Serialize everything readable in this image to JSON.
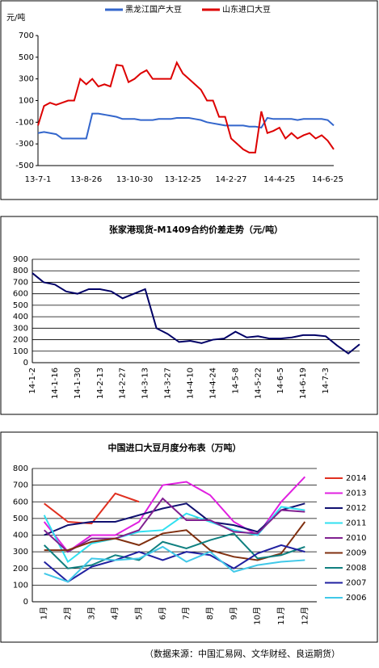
{
  "charts": [
    {
      "type": "line",
      "y_label": "元/吨",
      "legend": "top",
      "categories": [
        "13-7-1",
        null,
        null,
        null,
        null,
        null,
        null,
        null,
        "13-8-26",
        null,
        null,
        null,
        null,
        null,
        null,
        null,
        "13-10-30",
        null,
        null,
        null,
        null,
        null,
        null,
        null,
        "13-12-25",
        null,
        null,
        null,
        null,
        null,
        null,
        null,
        "14-2-27",
        null,
        null,
        null,
        null,
        null,
        null,
        null,
        "14-4-25",
        null,
        null,
        null,
        null,
        null,
        null,
        null,
        "14-6-25",
        null
      ],
      "series": [
        {
          "name": "黑龙江国产大豆",
          "color": "#3366cc",
          "values": [
            -200,
            -190,
            -200,
            -210,
            -250,
            -250,
            -250,
            -250,
            -250,
            -20,
            -20,
            -30,
            -40,
            -50,
            -70,
            -70,
            -70,
            -80,
            -80,
            -80,
            -70,
            -70,
            -70,
            -60,
            -60,
            -60,
            -70,
            -80,
            -100,
            -110,
            -120,
            -130,
            -130,
            -130,
            -130,
            -140,
            -140,
            -150,
            -60,
            -70,
            -70,
            -70,
            -70,
            -80,
            -70,
            -70,
            -70,
            -70,
            -80,
            -130
          ]
        },
        {
          "name": "山东进口大豆",
          "color": "#dd0000",
          "values": [
            -130,
            50,
            80,
            60,
            80,
            100,
            100,
            300,
            250,
            300,
            230,
            250,
            230,
            430,
            420,
            270,
            300,
            350,
            380,
            300,
            300,
            300,
            300,
            450,
            350,
            300,
            250,
            200,
            100,
            100,
            -50,
            -50,
            -250,
            -300,
            -350,
            -380,
            -380,
            0,
            -200,
            -180,
            -150,
            -250,
            -200,
            -250,
            -220,
            -200,
            -250,
            -220,
            -270,
            -350
          ]
        }
      ],
      "ylim": [
        -500,
        700
      ],
      "yticks": [
        -500,
        -300,
        -100,
        100,
        300,
        500,
        700
      ],
      "grid": false
    },
    {
      "type": "line",
      "title": "张家港现货-M1409合约价差走势（元/吨）",
      "categories": [
        "14-1-2",
        null,
        "14-1-16",
        null,
        "14-1-30",
        null,
        "14-2-13",
        null,
        "14-2-27",
        null,
        "14-3-13",
        null,
        "14-3-27",
        null,
        "14-4-10",
        null,
        "14-4-24",
        null,
        "14-5-8",
        null,
        "14-5-22",
        null,
        "14-6-5",
        null,
        "14-6-19",
        null,
        "14-7-3",
        null,
        null,
        null
      ],
      "series": [
        {
          "name": "价差",
          "color": "#000066",
          "values": [
            780,
            700,
            680,
            620,
            600,
            640,
            640,
            620,
            560,
            600,
            640,
            300,
            250,
            180,
            190,
            170,
            200,
            210,
            270,
            220,
            230,
            210,
            210,
            220,
            240,
            240,
            230,
            150,
            80,
            160
          ]
        }
      ],
      "ylim": [
        0,
        900
      ],
      "yticks": [
        0,
        100,
        200,
        300,
        400,
        500,
        600,
        700,
        800,
        900
      ],
      "grid": true,
      "legend": "none"
    },
    {
      "type": "line",
      "title": "中国进口大豆月度分布表（万吨）",
      "legend": "right",
      "categories": [
        "1月",
        "2月",
        "3月",
        "4月",
        "5月",
        "6月",
        "7月",
        "8月",
        "9月",
        "10月",
        "11月",
        "12月"
      ],
      "series": [
        {
          "name": "2014",
          "color": "#e03020",
          "values": [
            590,
            480,
            470,
            650,
            600,
            null,
            null,
            null,
            null,
            null,
            null,
            null
          ]
        },
        {
          "name": "2013",
          "color": "#e020e0",
          "values": [
            480,
            300,
            400,
            400,
            480,
            700,
            720,
            640,
            480,
            400,
            600,
            750
          ]
        },
        {
          "name": "2012",
          "color": "#101070",
          "values": [
            400,
            460,
            480,
            480,
            520,
            560,
            590,
            480,
            460,
            420,
            550,
            590
          ]
        },
        {
          "name": "2011",
          "color": "#30e0f0",
          "values": [
            520,
            240,
            350,
            380,
            420,
            430,
            530,
            480,
            430,
            400,
            570,
            550
          ]
        },
        {
          "name": "2010",
          "color": "#802090",
          "values": [
            430,
            300,
            380,
            380,
            430,
            620,
            490,
            490,
            420,
            410,
            550,
            540
          ]
        },
        {
          "name": "2009",
          "color": "#803010",
          "values": [
            310,
            310,
            360,
            380,
            340,
            410,
            430,
            310,
            270,
            250,
            290,
            480
          ]
        },
        {
          "name": "2008",
          "color": "#108080",
          "values": [
            340,
            200,
            220,
            280,
            250,
            360,
            320,
            370,
            410,
            260,
            280,
            330
          ]
        },
        {
          "name": "2007",
          "color": "#2020a0",
          "values": [
            240,
            120,
            210,
            250,
            300,
            250,
            300,
            280,
            200,
            290,
            340,
            300
          ]
        },
        {
          "name": "2006",
          "color": "#40c8e8",
          "values": [
            170,
            120,
            260,
            250,
            260,
            330,
            240,
            300,
            180,
            220,
            240,
            250
          ]
        }
      ],
      "ylim": [
        0,
        800
      ],
      "yticks": [
        0,
        100,
        200,
        300,
        400,
        500,
        600,
        700,
        800
      ],
      "grid": true
    }
  ],
  "footer": "（数据来源：中国汇易网、文华财经、良运期货）"
}
